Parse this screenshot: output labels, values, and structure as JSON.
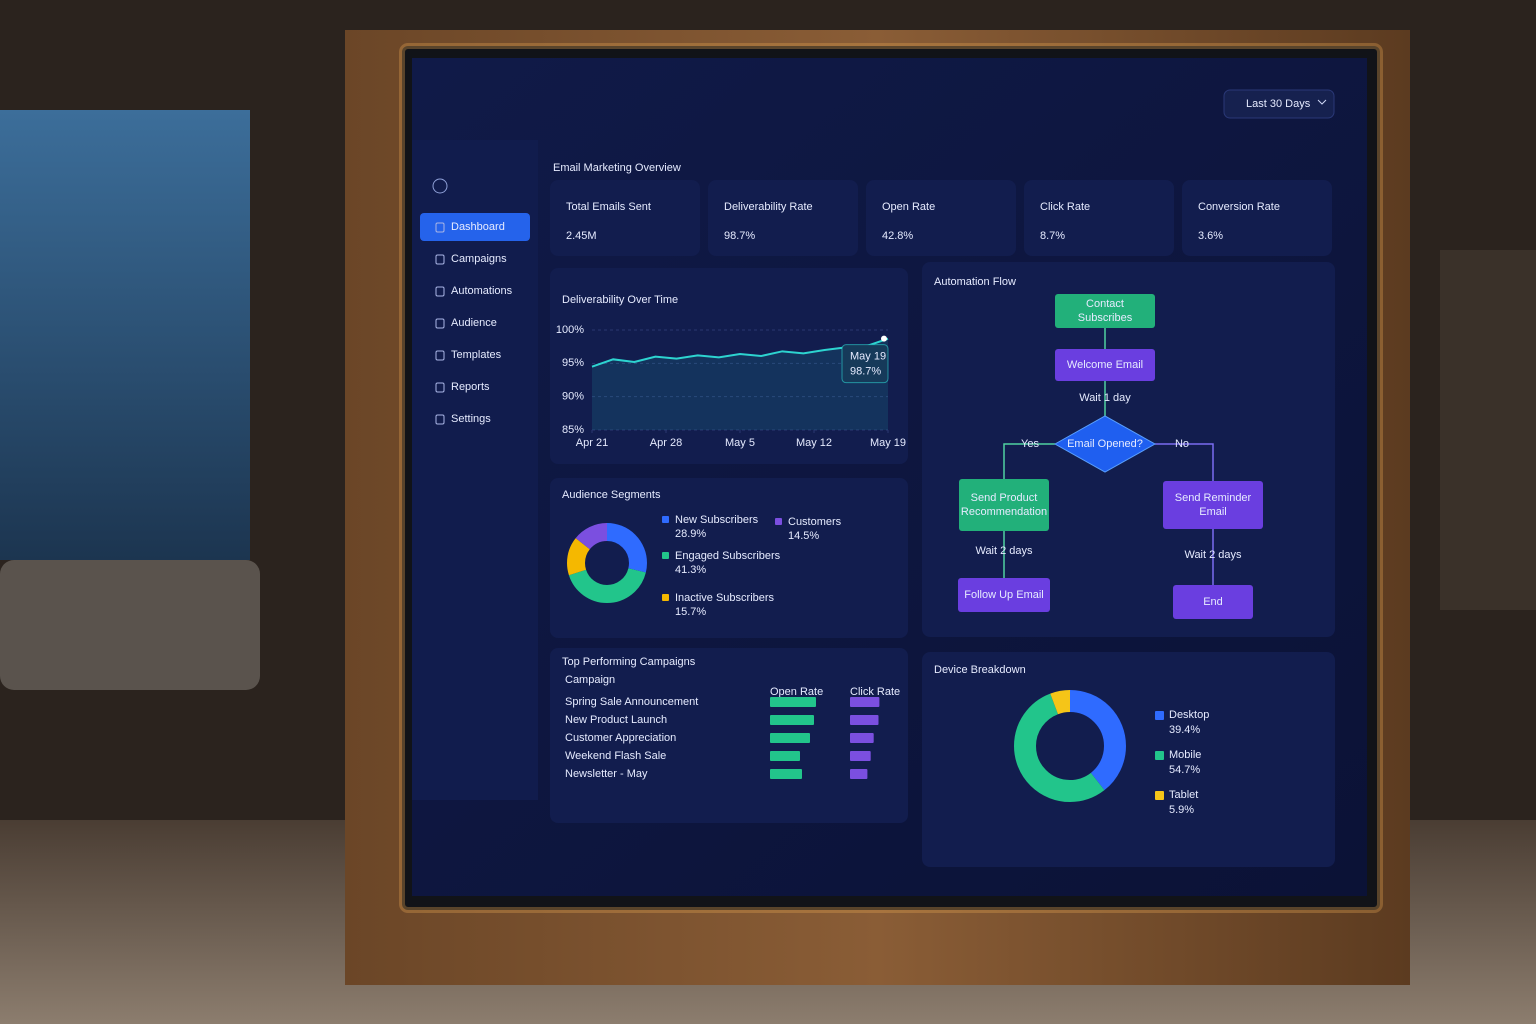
{
  "sidebar": {
    "items": [
      "Dashboard",
      "Campaigns",
      "Automations",
      "Audience",
      "Templates",
      "Reports",
      "Settings"
    ],
    "active": 0
  },
  "header": {
    "title": "Email Marketing Overview",
    "date_filter": "Last 30 Days"
  },
  "kpis": [
    {
      "label": "Total Emails Sent",
      "value": "2.45M"
    },
    {
      "label": "Deliverability Rate",
      "value": "98.7%"
    },
    {
      "label": "Open Rate",
      "value": "42.8%"
    },
    {
      "label": "Click Rate",
      "value": "8.7%"
    },
    {
      "label": "Conversion Rate",
      "value": "3.6%"
    }
  ],
  "chart_data": [
    {
      "type": "line",
      "title": "Deliverability Over Time",
      "x": [
        0,
        2,
        4,
        6,
        8,
        10,
        12,
        14,
        16,
        18,
        20,
        22,
        24,
        26,
        28
      ],
      "values": [
        94.5,
        95.6,
        95.2,
        96.0,
        95.7,
        96.2,
        95.9,
        96.4,
        96.1,
        96.8,
        96.5,
        97.0,
        97.4,
        97.6,
        98.7
      ],
      "color": "#2dd4d0",
      "xlim": [
        0,
        28
      ],
      "xticks": [
        {
          "value": 0,
          "label": "Apr 21"
        },
        {
          "value": 7,
          "label": "Apr 28"
        },
        {
          "value": 14,
          "label": "May 5"
        },
        {
          "value": 21,
          "label": "May 12"
        },
        {
          "value": 28,
          "label": "May 19"
        }
      ],
      "ylim": [
        85,
        100
      ],
      "yticks": [
        {
          "value": 85,
          "label": "85%"
        },
        {
          "value": 90,
          "label": "90%"
        },
        {
          "value": 95,
          "label": "95%"
        },
        {
          "value": 100,
          "label": "100%"
        }
      ],
      "grid": true,
      "annotation": {
        "label": "May 19",
        "value": 98.7,
        "value_label": "98.7%"
      }
    },
    {
      "type": "pie",
      "title": "Audience Segments",
      "categories": [
        "New Subscribers",
        "Engaged Subscribers",
        "Inactive Subscribers",
        "Customers"
      ],
      "values": [
        28.9,
        41.3,
        15.7,
        14.5
      ],
      "value_labels": [
        "28.9%",
        "41.3%",
        "15.7%",
        "14.5%"
      ],
      "colors": [
        "#2f6bff",
        "#22c58b",
        "#f5b800",
        "#7b4fe0"
      ],
      "donut": true
    },
    {
      "type": "bar",
      "title": "Top Performing Campaigns",
      "category_label": "Campaign",
      "categories": [
        "Spring Sale Announcement",
        "New Product Launch",
        "Customer Appreciation",
        "Weekend Flash Sale",
        "Newsletter - May"
      ],
      "series": [
        {
          "name": "Open Rate",
          "color": "#22c58b",
          "values": [
            46,
            44,
            40,
            30,
            32
          ],
          "xlim": [
            0,
            100
          ]
        },
        {
          "name": "Click Rate",
          "color": "#7b4fe0",
          "values": [
            9.8,
            9.5,
            7.9,
            6.9,
            5.8
          ],
          "xlim": [
            0,
            20
          ]
        }
      ]
    },
    {
      "type": "pie",
      "title": "Device Breakdown",
      "categories": [
        "Desktop",
        "Mobile",
        "Tablet"
      ],
      "values": [
        39.4,
        54.7,
        5.9
      ],
      "value_labels": [
        "39.4%",
        "54.7%",
        "5.9%"
      ],
      "colors": [
        "#2f6bff",
        "#22c58b",
        "#f5c518"
      ],
      "donut": true
    }
  ],
  "flow": {
    "title": "Automation Flow",
    "nodes": [
      {
        "label": "Contact Subscribes",
        "kind": "start"
      },
      {
        "label": "Welcome Email",
        "kind": "action"
      },
      {
        "label": "Email Opened?",
        "kind": "decision"
      },
      {
        "label": "Send Product Recommendation",
        "kind": "start"
      },
      {
        "label": "Send Reminder Email",
        "kind": "action"
      },
      {
        "label": "Follow Up Email",
        "kind": "action"
      },
      {
        "label": "End",
        "kind": "action"
      }
    ],
    "edge_labels": [
      "Wait 1 day",
      "Yes",
      "No",
      "Wait 2 days",
      "Wait 2 days"
    ]
  }
}
